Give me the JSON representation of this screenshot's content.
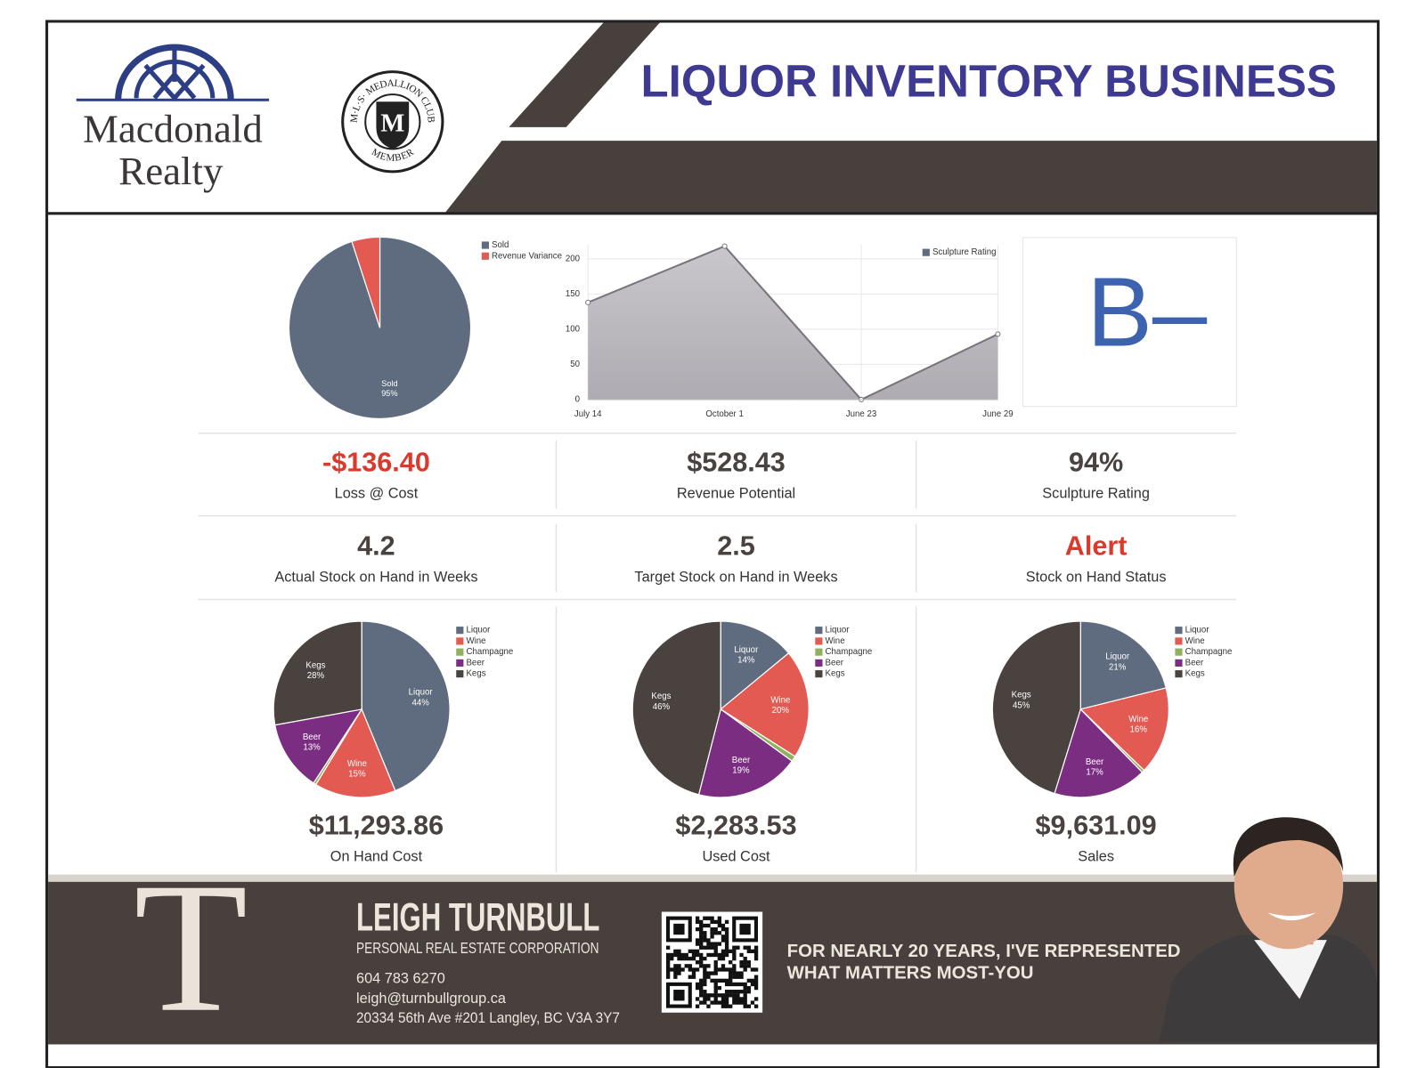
{
  "header": {
    "logo_line1": "Macdonald",
    "logo_line2": "Realty",
    "badge_ring": "M·L·S·   MEDALLION   CLUB",
    "badge_bottom": "MEMBER",
    "badge_letter": "M",
    "title": "LIQUOR INVENTORY BUSINESS"
  },
  "chart_data": [
    {
      "type": "pie",
      "categories": [
        "Sold",
        "Revenue Variance"
      ],
      "values": [
        95,
        5
      ],
      "value_labels": [
        "95%",
        null
      ],
      "colors": [
        "#5f6b7e",
        "#e35a52"
      ],
      "legend": "top-right"
    },
    {
      "type": "area",
      "categories": [
        "July 14",
        "October 1",
        "June 23",
        "June 29"
      ],
      "series": [
        {
          "name": "Sculpture Rating",
          "color": "#5f6b7e",
          "values": [
            138,
            218,
            0,
            93
          ]
        }
      ],
      "ylim": [
        0,
        220
      ],
      "yticks": [
        0,
        50,
        100,
        150,
        200
      ],
      "grid": true,
      "legend": "top-right"
    },
    {
      "type": "pie",
      "categories": [
        "Liquor",
        "Wine",
        "Champagne",
        "Beer",
        "Kegs"
      ],
      "values": [
        44,
        15,
        0.5,
        13,
        28
      ],
      "value_labels": [
        "44%",
        "15%",
        null,
        "13%",
        "28%"
      ],
      "colors": [
        "#5f6b7e",
        "#e35a52",
        "#8fb15e",
        "#7b2d82",
        "#4a423f"
      ],
      "legend": "top-right"
    },
    {
      "type": "pie",
      "categories": [
        "Liquor",
        "Wine",
        "Champagne",
        "Beer",
        "Kegs"
      ],
      "values": [
        14,
        20,
        1,
        19,
        46
      ],
      "value_labels": [
        "14%",
        "20%",
        null,
        "19%",
        "46%"
      ],
      "colors": [
        "#5f6b7e",
        "#e35a52",
        "#8fb15e",
        "#7b2d82",
        "#4a423f"
      ],
      "legend": "top-right"
    },
    {
      "type": "pie",
      "categories": [
        "Liquor",
        "Wine",
        "Champagne",
        "Beer",
        "Kegs"
      ],
      "values": [
        21,
        16,
        0.5,
        17,
        45
      ],
      "value_labels": [
        "21%",
        "16%",
        null,
        "17%",
        "45%"
      ],
      "colors": [
        "#5f6b7e",
        "#e35a52",
        "#8fb15e",
        "#7b2d82",
        "#4a423f"
      ],
      "legend": "top-right"
    }
  ],
  "grade": "B–",
  "metrics": [
    {
      "value": "-$136.40",
      "label": "Loss @ Cost",
      "color": "#d93a2b"
    },
    {
      "value": "$528.43",
      "label": "Revenue Potential",
      "color": "#4a423f"
    },
    {
      "value": "94%",
      "label": "Sculpture Rating",
      "color": "#4a423f"
    },
    {
      "value": "4.2",
      "label": "Actual Stock on Hand in Weeks",
      "color": "#4a423f"
    },
    {
      "value": "2.5",
      "label": "Target Stock on Hand in Weeks",
      "color": "#4a423f"
    },
    {
      "value": "Alert",
      "label": "Stock on Hand Status",
      "color": "#d93a2b"
    }
  ],
  "totals": [
    {
      "value": "$11,293.86",
      "label": "On Hand Cost"
    },
    {
      "value": "$2,283.53",
      "label": "Used Cost"
    },
    {
      "value": "$9,631.09",
      "label": "Sales"
    }
  ],
  "footer": {
    "monogram": "T",
    "name": "LEIGH TURNBULL",
    "company": "PERSONAL REAL ESTATE CORPORATION",
    "phone": "604 783 6270",
    "email": "leigh@turnbullgroup.ca",
    "address": "20334 56th Ave #201 Langley, BC  V3A 3Y7",
    "tagline_line1": "FOR NEARLY 20 YEARS, I'VE REPRESENTED",
    "tagline_line2": "WHAT MATTERS MOST-YOU"
  }
}
